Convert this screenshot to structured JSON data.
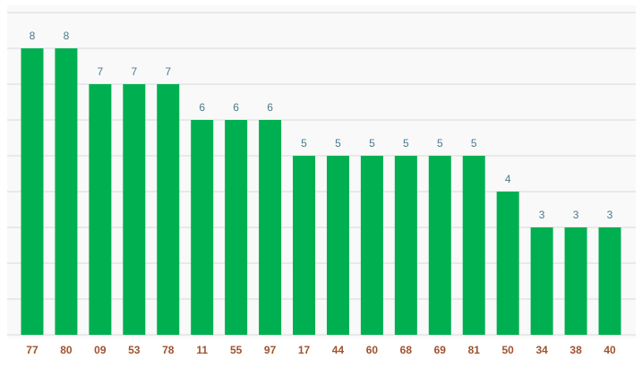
{
  "chart_data": {
    "type": "bar",
    "categories": [
      "77",
      "80",
      "09",
      "53",
      "78",
      "11",
      "55",
      "97",
      "17",
      "44",
      "60",
      "68",
      "69",
      "81",
      "50",
      "34",
      "38",
      "40"
    ],
    "values": [
      8,
      8,
      7,
      7,
      7,
      6,
      6,
      6,
      5,
      5,
      5,
      5,
      5,
      5,
      4,
      3,
      3,
      3
    ],
    "color": "#00b050",
    "ylim": [
      0,
      9
    ],
    "yticks": [
      0,
      1,
      2,
      3,
      4,
      5,
      6,
      7,
      8,
      9
    ],
    "grid": true
  }
}
